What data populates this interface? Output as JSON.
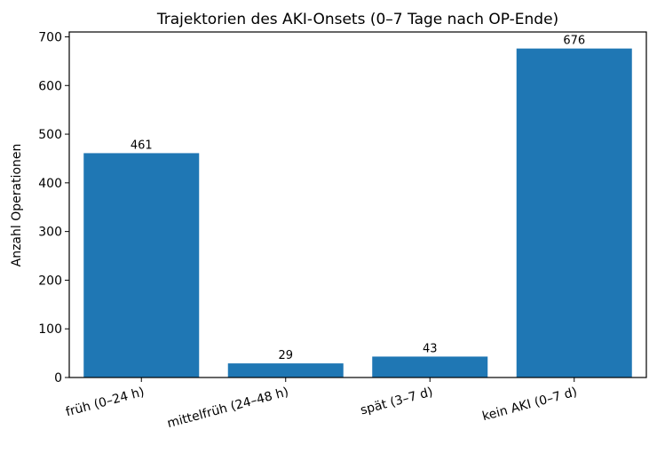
{
  "chart_data": {
    "type": "bar",
    "title": "Trajektorien des AKI-Onsets (0–7 Tage nach OP-Ende)",
    "xlabel": "",
    "ylabel": "Anzahl Operationen",
    "categories": [
      "früh (0–24 h)",
      "mittelfrüh (24–48 h)",
      "spät (3–7 d)",
      "kein AKI (0–7 d)"
    ],
    "values": [
      461,
      29,
      43,
      676
    ],
    "data_labels": [
      "461",
      "29",
      "43",
      "676"
    ],
    "yticks": [
      0,
      100,
      200,
      300,
      400,
      500,
      600,
      700
    ],
    "ylim": [
      0,
      710
    ],
    "bar_color": "#1f77b4",
    "grid": false,
    "legend": "none"
  }
}
